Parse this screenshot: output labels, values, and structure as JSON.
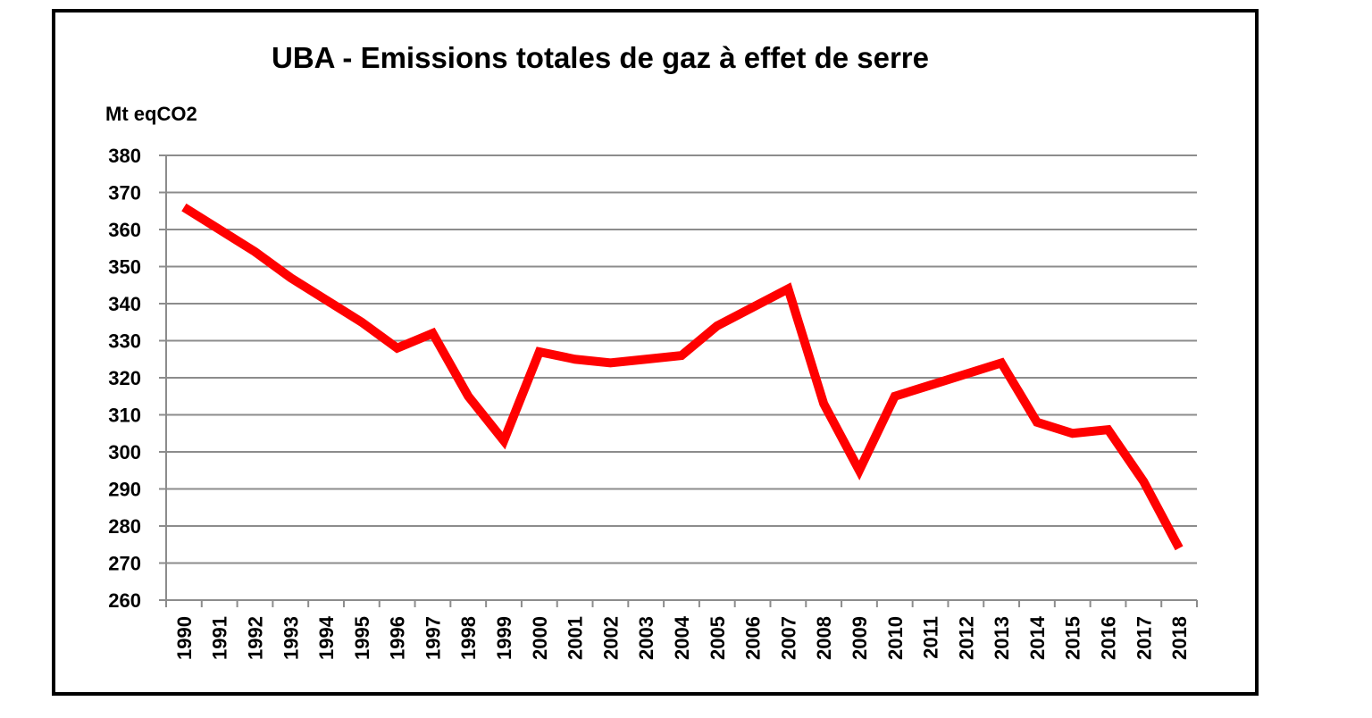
{
  "chart_data": {
    "type": "line",
    "title": "UBA - Emissions totales de gaz à effet de serre",
    "ylabel": "Mt eqCO2",
    "xlabel": "",
    "categories": [
      "1990",
      "1991",
      "1992",
      "1993",
      "1994",
      "1995",
      "1996",
      "1997",
      "1998",
      "1999",
      "2000",
      "2001",
      "2002",
      "2003",
      "2004",
      "2005",
      "2006",
      "2007",
      "2008",
      "2009",
      "2010",
      "2011",
      "2012",
      "2013",
      "2014",
      "2015",
      "2016",
      "2017",
      "2018"
    ],
    "series": [
      {
        "values": [
          366,
          360,
          354,
          347,
          341,
          335,
          328,
          332,
          315,
          303,
          327,
          325,
          324,
          325,
          326,
          334,
          339,
          344,
          313,
          295,
          315,
          318,
          321,
          324,
          308,
          305,
          306,
          292,
          274
        ],
        "color": "#ff0000"
      }
    ],
    "ylim": [
      260,
      380
    ],
    "yticks": [
      260,
      270,
      280,
      290,
      300,
      310,
      320,
      330,
      340,
      350,
      360,
      370,
      380
    ],
    "grid": true,
    "legend": "none"
  }
}
